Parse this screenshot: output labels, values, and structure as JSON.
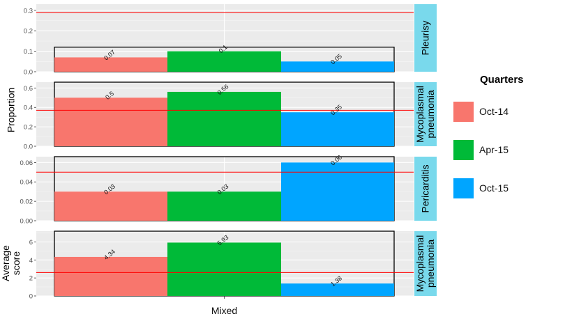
{
  "colors": {
    "panel_bg": "#EBEBEB",
    "grid_major": "#FFFFFF",
    "grid_minor": "#F5F5F5",
    "strip_bg": "#79D9EC",
    "reference_line": "#FF0000",
    "axis_text": "#4D4D4D",
    "bar_outline": "#000000"
  },
  "chart_data": {
    "type": "bar",
    "x_tick_label": "Mixed",
    "legend": {
      "title": "Quarters",
      "position": "right",
      "items": [
        {
          "label": "Oct-14",
          "color": "#F8766D"
        },
        {
          "label": "Apr-15",
          "color": "#00BA38"
        },
        {
          "label": "Oct-15",
          "color": "#00A5FF"
        }
      ]
    },
    "y_group_labels": [
      {
        "lines": [
          "Proportion"
        ]
      },
      {
        "lines": [
          "Average",
          "score"
        ]
      }
    ],
    "panels": [
      {
        "strip": [
          "Pleurisy"
        ],
        "ylim": [
          0,
          0.33
        ],
        "yticks": [
          0,
          0.1,
          0.2,
          0.3
        ],
        "ytick_labels": [
          "0.0",
          "0.1",
          "0.2",
          "0.3"
        ],
        "reference_line": 0.29,
        "values": [
          0.07,
          0.1,
          0.05
        ],
        "value_labels": [
          "0.07",
          "0.1",
          "0.05"
        ],
        "outline_max": 0.12
      },
      {
        "strip": [
          "Mycoplasmal",
          "pneumonia"
        ],
        "ylim": [
          0,
          0.66
        ],
        "yticks": [
          0,
          0.2,
          0.4,
          0.6
        ],
        "ytick_labels": [
          "0.0",
          "0.2",
          "0.4",
          "0.6"
        ],
        "reference_line": 0.37,
        "values": [
          0.5,
          0.56,
          0.35
        ],
        "value_labels": [
          "0.5",
          "0.56",
          "0.35"
        ],
        "outline_max": 0.66
      },
      {
        "strip": [
          "Pericarditis"
        ],
        "ylim": [
          0,
          0.066
        ],
        "yticks": [
          0,
          0.02,
          0.04,
          0.06
        ],
        "ytick_labels": [
          "0.00",
          "0.02",
          "0.04",
          "0.06"
        ],
        "reference_line": 0.05,
        "values": [
          0.03,
          0.03,
          0.06
        ],
        "value_labels": [
          "0.03",
          "0.03",
          "0.06"
        ],
        "outline_max": 0.066
      },
      {
        "strip": [
          "Mycoplasmal",
          "pneumonia"
        ],
        "ylim": [
          0,
          7.2
        ],
        "yticks": [
          0,
          2,
          4,
          6
        ],
        "ytick_labels": [
          "0",
          "2",
          "4",
          "6"
        ],
        "reference_line": 2.6,
        "values": [
          4.34,
          5.93,
          1.38
        ],
        "value_labels": [
          "4.34",
          "5.93",
          "1.38"
        ],
        "outline_max": 7.2
      }
    ]
  }
}
